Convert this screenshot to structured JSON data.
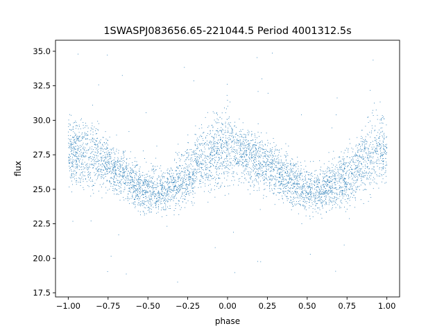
{
  "chart_data": {
    "type": "scatter",
    "title": "1SWASPJ083656.65-221044.5 Period 4001312.5s",
    "xlabel": "phase",
    "ylabel": "flux",
    "xlim": [
      -1.08,
      1.08
    ],
    "ylim": [
      17.2,
      35.8
    ],
    "x_ticks": [
      -1.0,
      -0.75,
      -0.5,
      -0.25,
      0.0,
      0.25,
      0.5,
      0.75,
      1.0
    ],
    "x_tick_labels": [
      "−1.00",
      "−0.75",
      "−0.50",
      "−0.25",
      "0.00",
      "0.25",
      "0.50",
      "0.75",
      "1.00"
    ],
    "y_ticks": [
      17.5,
      20.0,
      22.5,
      25.0,
      27.5,
      30.0,
      32.5,
      35.0
    ],
    "y_tick_labels": [
      "17.5",
      "20.0",
      "22.5",
      "25.0",
      "27.5",
      "30.0",
      "32.5",
      "35.0"
    ],
    "grid": false,
    "legend": "none",
    "marker_color": "#1f77b4",
    "series": [
      {
        "phase_profile": {
          "x": [
            -1.0,
            -0.9,
            -0.8,
            -0.7,
            -0.6,
            -0.5,
            -0.4,
            -0.3,
            -0.2,
            -0.1,
            0.0,
            0.1,
            0.2,
            0.3,
            0.4,
            0.5,
            0.6,
            0.7,
            0.8,
            0.9,
            1.0
          ],
          "y_center": [
            27.8,
            27.5,
            27.2,
            26.4,
            25.5,
            24.8,
            24.9,
            25.6,
            26.6,
            27.6,
            28.0,
            27.6,
            27.0,
            26.4,
            25.6,
            24.9,
            25.0,
            25.6,
            26.4,
            27.5,
            28.0
          ],
          "y_spread": [
            1.5,
            1.6,
            1.4,
            1.2,
            1.1,
            1.1,
            1.1,
            1.2,
            1.4,
            1.8,
            1.7,
            1.4,
            1.3,
            1.2,
            1.1,
            1.1,
            1.1,
            1.2,
            1.5,
            1.9,
            1.6
          ]
        }
      }
    ]
  }
}
